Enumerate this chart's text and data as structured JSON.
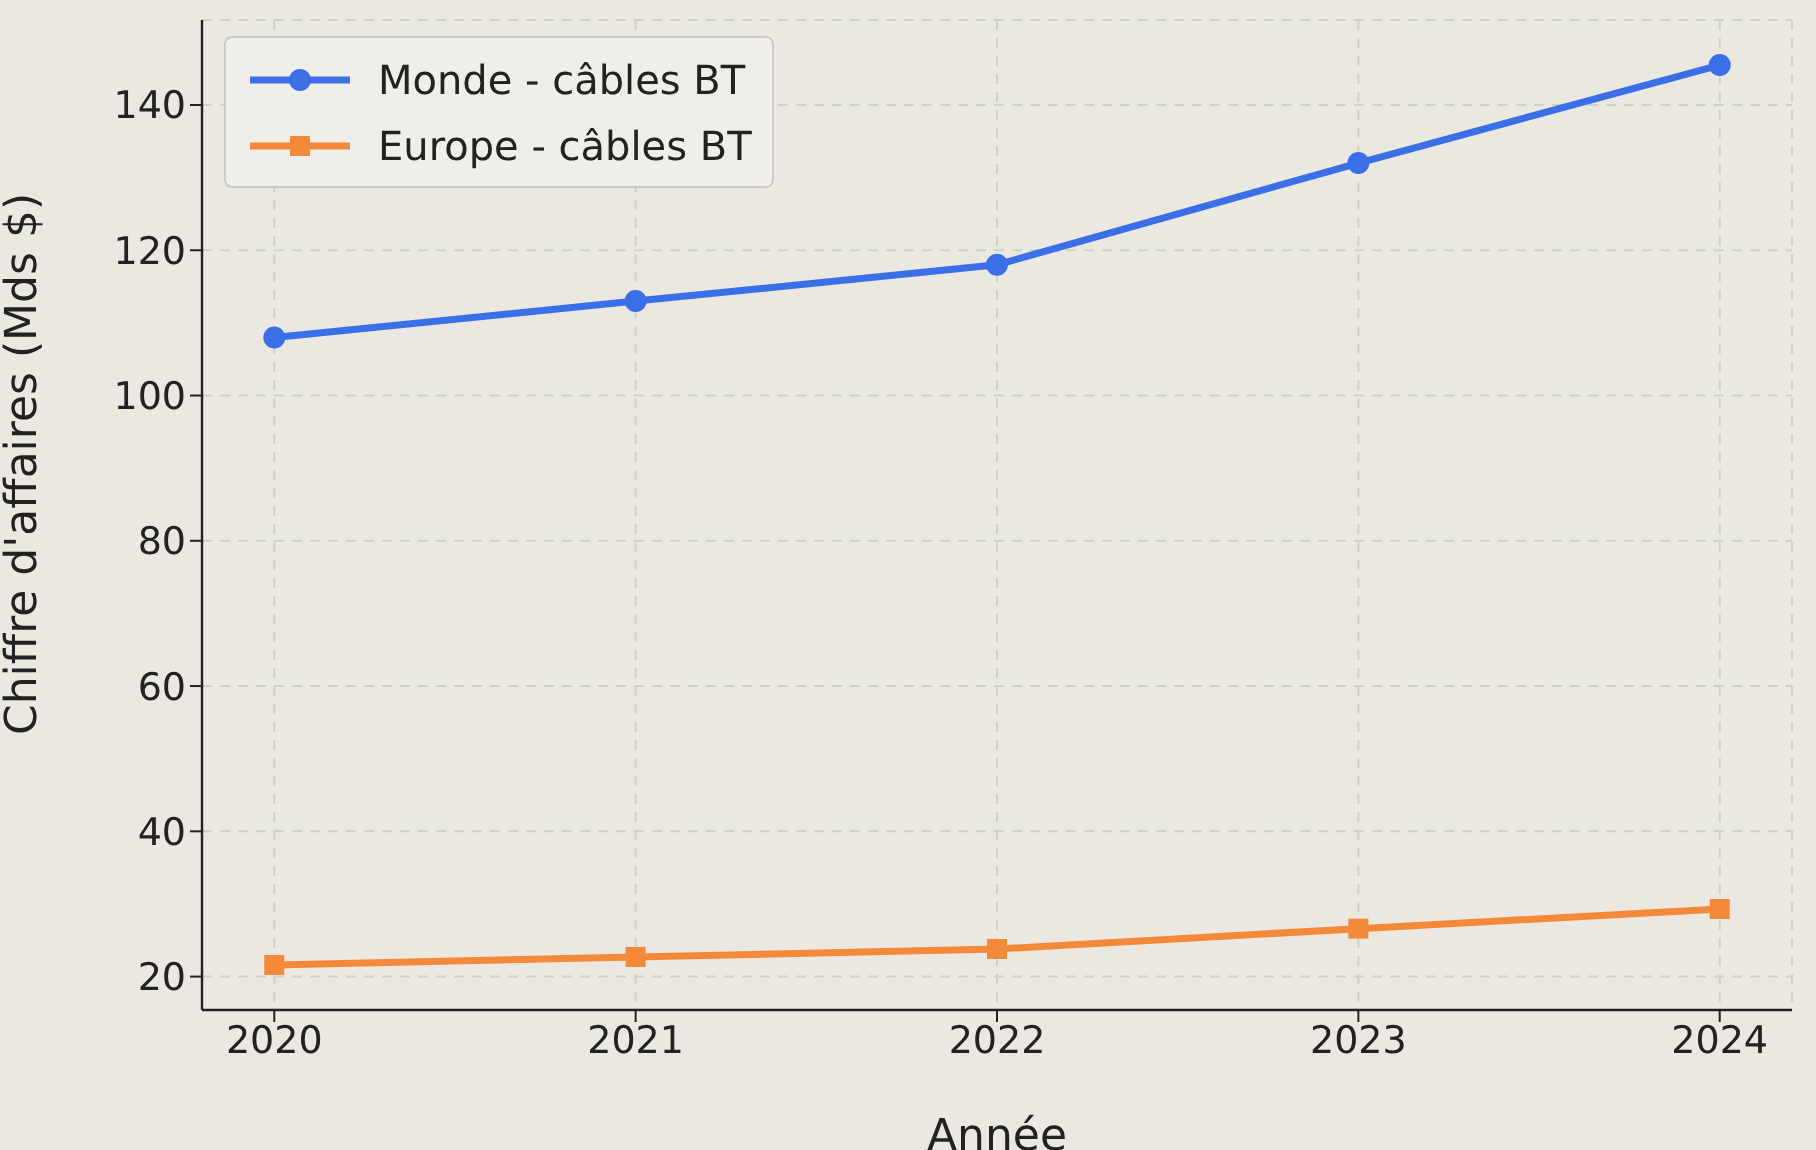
{
  "chart_data": {
    "type": "line",
    "xlabel": "Année",
    "ylabel": "Chiffre d'affaires (Mds $)",
    "x": [
      2020,
      2021,
      2022,
      2023,
      2024
    ],
    "series": [
      {
        "name": "Monde - câbles BT",
        "color": "#3b6fe8",
        "values": [
          108,
          113,
          118,
          132,
          145.5
        ],
        "marker": "circle"
      },
      {
        "name": "Europe - câbles BT",
        "color": "#f5893a",
        "values": [
          21.6,
          22.7,
          23.8,
          26.6,
          29.3
        ],
        "marker": "square"
      }
    ],
    "xlim": [
      2019.8,
      2024.2
    ],
    "ylim": [
      15.4,
      151.7
    ],
    "xticks": [
      2020,
      2021,
      2022,
      2023,
      2024
    ],
    "yticks": [
      20,
      40,
      60,
      80,
      100,
      120,
      140
    ],
    "grid": true,
    "legend": "top left",
    "line_style": "solid"
  }
}
